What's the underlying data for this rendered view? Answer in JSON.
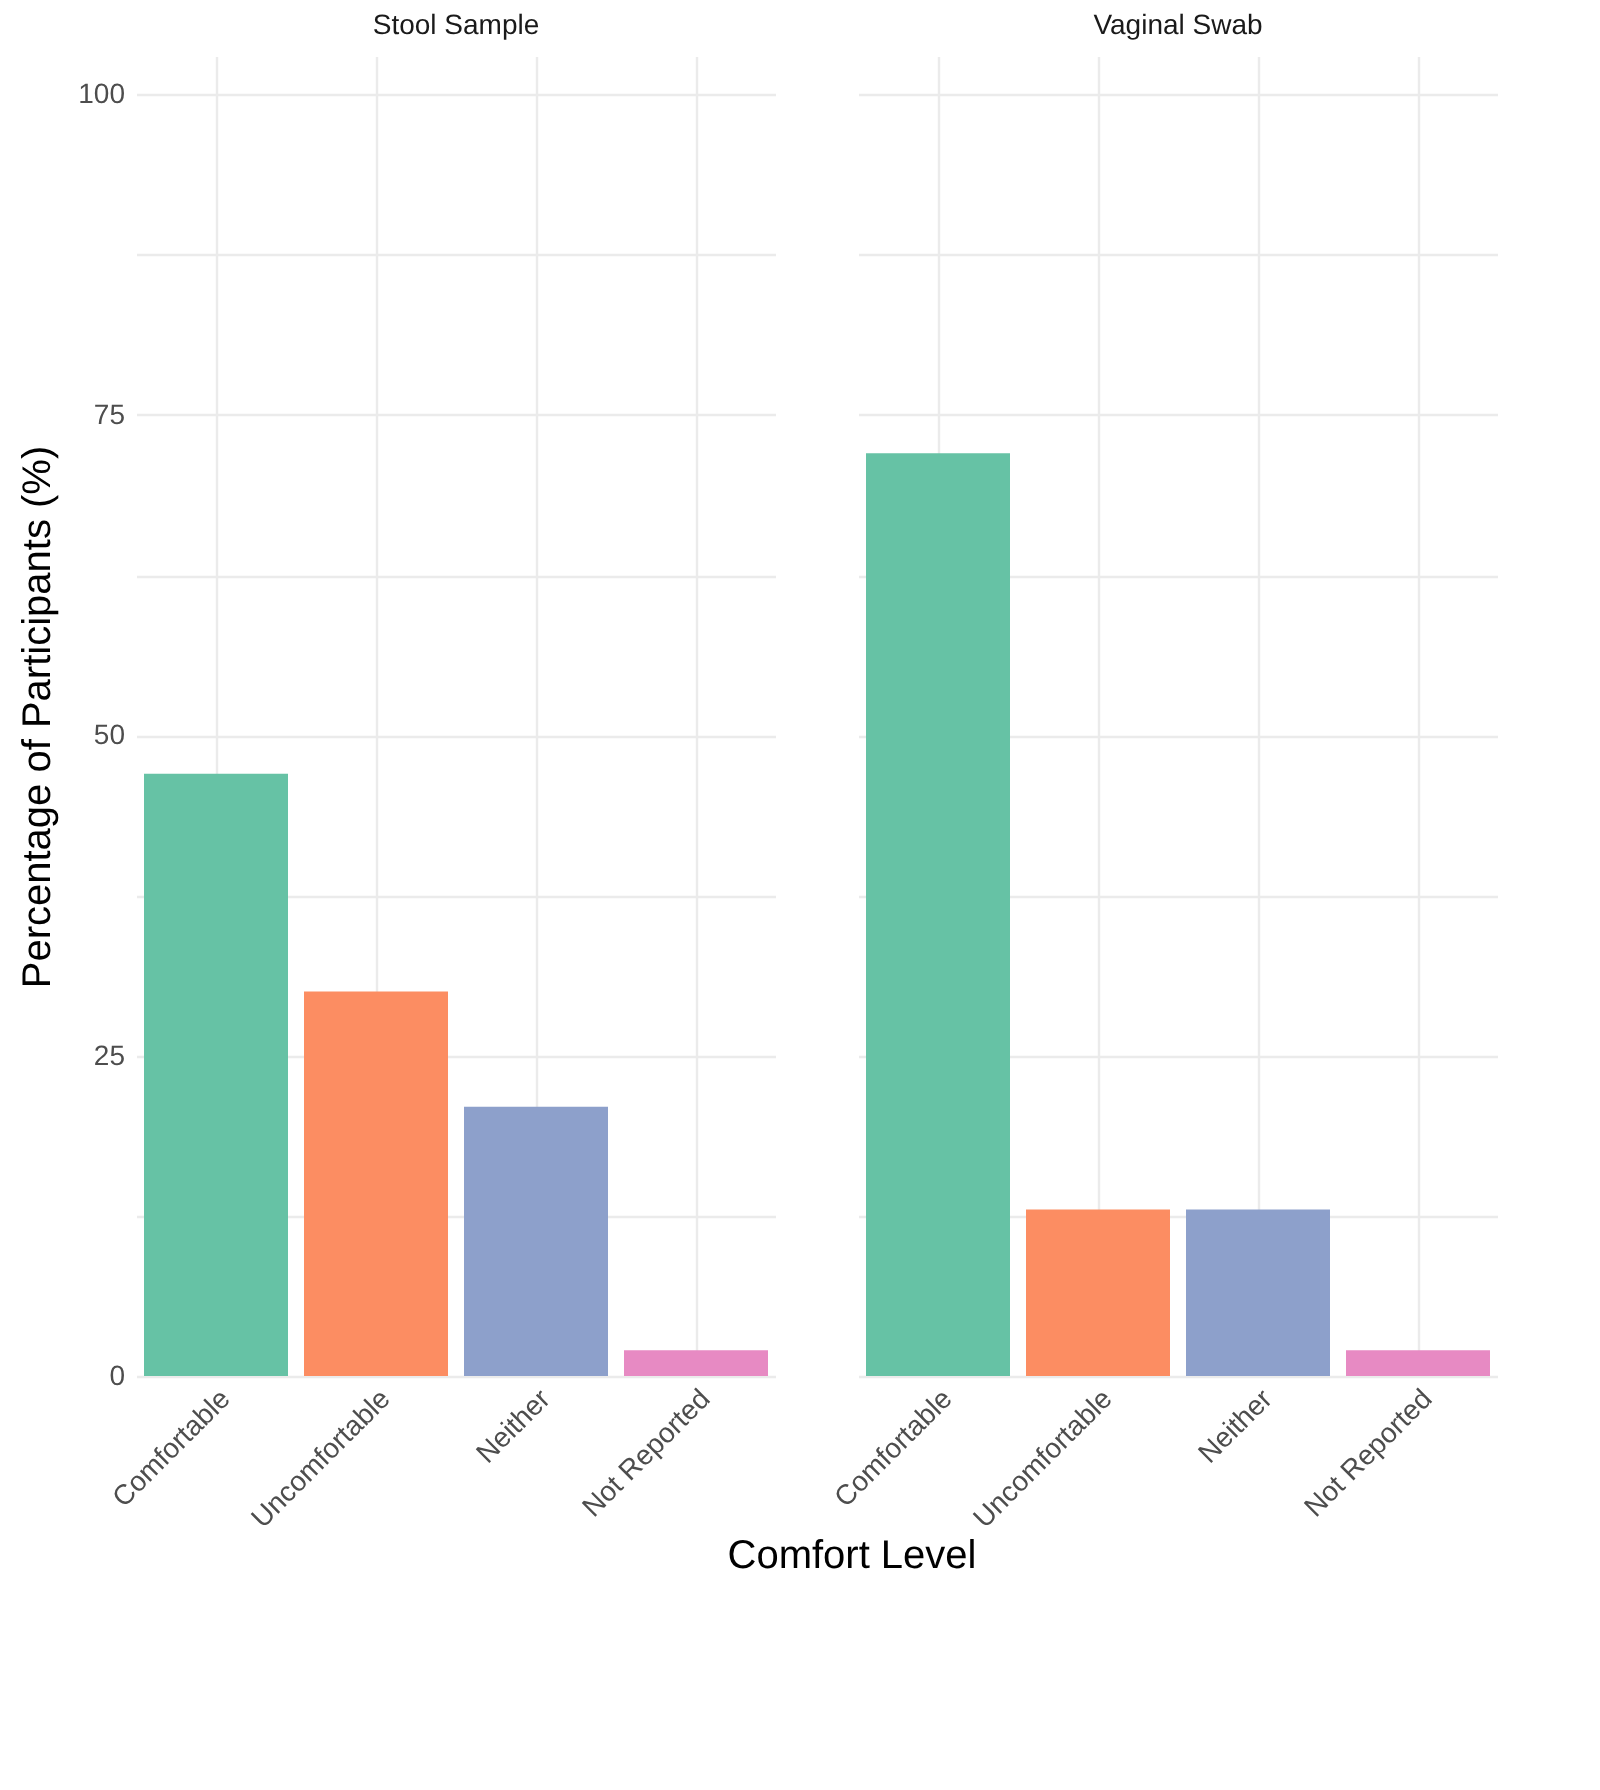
{
  "chart_data": [
    {
      "type": "bar",
      "title": "Stool Sample",
      "ylabel": "Percentage of Participants (%)",
      "xlabel": "Comfort Level",
      "categories": [
        "Comfortable",
        "Uncomfortable",
        "Neither",
        "Not Reported"
      ],
      "values": [
        47,
        30,
        21,
        2
      ],
      "colors": [
        "#66c2a5",
        "#fc8d62",
        "#8da0cb",
        "#e78ac3"
      ],
      "ylim": [
        0,
        103
      ],
      "yticks": [
        0,
        {
          "value": 12.5,
          "label": null
        },
        25,
        {
          "value": 37.5,
          "label": null
        },
        50,
        {
          "value": 62.5,
          "label": null
        },
        75,
        {
          "value": 87.5,
          "label": null
        },
        100
      ],
      "grid": true
    },
    {
      "type": "bar",
      "title": "Vaginal Swab",
      "categories": [
        "Comfortable",
        "Uncomfortable",
        "Neither",
        "Not Reported"
      ],
      "values": [
        72,
        13,
        13,
        2
      ],
      "colors": [
        "#66c2a5",
        "#fc8d62",
        "#8da0cb",
        "#e78ac3"
      ],
      "ylim": [
        0,
        103
      ],
      "yticks": [
        0,
        {
          "value": 12.5,
          "label": null
        },
        25,
        {
          "value": 37.5,
          "label": null
        },
        50,
        {
          "value": 62.5,
          "label": null
        },
        75,
        {
          "value": 87.5,
          "label": null
        },
        100
      ],
      "grid": true,
      "tick_labels": "x"
    }
  ]
}
